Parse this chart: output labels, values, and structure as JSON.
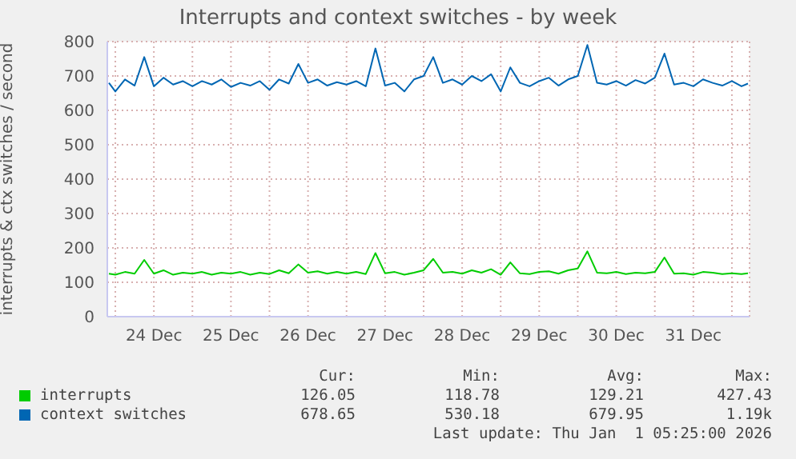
{
  "chart_data": {
    "type": "line",
    "title": "Interrupts and context switches - by week",
    "ylabel": "interrupts & ctx switches / second",
    "x": [
      "2025-12-23T22:00",
      "2025-12-24T00:00",
      "2025-12-24T03:00",
      "2025-12-24T06:00",
      "2025-12-24T09:00",
      "2025-12-24T12:00",
      "2025-12-24T15:00",
      "2025-12-24T18:00",
      "2025-12-24T21:00",
      "2025-12-25T00:00",
      "2025-12-25T03:00",
      "2025-12-25T06:00",
      "2025-12-25T09:00",
      "2025-12-25T12:00",
      "2025-12-25T15:00",
      "2025-12-25T18:00",
      "2025-12-25T21:00",
      "2025-12-26T00:00",
      "2025-12-26T03:00",
      "2025-12-26T06:00",
      "2025-12-26T09:00",
      "2025-12-26T12:00",
      "2025-12-26T15:00",
      "2025-12-26T18:00",
      "2025-12-26T21:00",
      "2025-12-27T00:00",
      "2025-12-27T03:00",
      "2025-12-27T06:00",
      "2025-12-27T09:00",
      "2025-12-27T12:00",
      "2025-12-27T15:00",
      "2025-12-27T18:00",
      "2025-12-27T21:00",
      "2025-12-28T00:00",
      "2025-12-28T03:00",
      "2025-12-28T06:00",
      "2025-12-28T09:00",
      "2025-12-28T12:00",
      "2025-12-28T15:00",
      "2025-12-28T18:00",
      "2025-12-28T21:00",
      "2025-12-29T00:00",
      "2025-12-29T03:00",
      "2025-12-29T06:00",
      "2025-12-29T09:00",
      "2025-12-29T12:00",
      "2025-12-29T15:00",
      "2025-12-29T18:00",
      "2025-12-29T21:00",
      "2025-12-30T00:00",
      "2025-12-30T03:00",
      "2025-12-30T06:00",
      "2025-12-30T09:00",
      "2025-12-30T12:00",
      "2025-12-30T15:00",
      "2025-12-30T18:00",
      "2025-12-30T21:00",
      "2025-12-31T00:00",
      "2025-12-31T03:00",
      "2025-12-31T06:00",
      "2025-12-31T09:00",
      "2025-12-31T12:00",
      "2025-12-31T15:00",
      "2025-12-31T18:00",
      "2025-12-31T21:00",
      "2026-01-01T00:00",
      "2026-01-01T03:00",
      "2026-01-01T05:00"
    ],
    "series": [
      {
        "name": "interrupts",
        "color": "#00cc00",
        "values": [
          125,
          122,
          130,
          125,
          165,
          125,
          135,
          122,
          128,
          125,
          130,
          122,
          128,
          125,
          130,
          122,
          128,
          124,
          135,
          126,
          152,
          128,
          132,
          125,
          130,
          125,
          130,
          124,
          185,
          126,
          130,
          122,
          128,
          135,
          168,
          128,
          130,
          125,
          135,
          128,
          138,
          122,
          158,
          126,
          124,
          130,
          132,
          125,
          135,
          140,
          190,
          128,
          126,
          130,
          124,
          128,
          126,
          130,
          172,
          125,
          126,
          122,
          130,
          128,
          124,
          126,
          124,
          126
        ]
      },
      {
        "name": "context switches",
        "color": "#0066b3",
        "values": [
          680,
          655,
          690,
          672,
          755,
          670,
          695,
          675,
          685,
          670,
          685,
          675,
          690,
          668,
          680,
          672,
          685,
          660,
          690,
          678,
          735,
          680,
          690,
          672,
          682,
          675,
          685,
          670,
          780,
          672,
          680,
          655,
          690,
          700,
          755,
          680,
          690,
          675,
          700,
          685,
          705,
          655,
          725,
          680,
          670,
          685,
          695,
          672,
          690,
          700,
          790,
          680,
          675,
          685,
          672,
          688,
          678,
          695,
          765,
          675,
          680,
          670,
          690,
          680,
          672,
          685,
          670,
          678
        ]
      }
    ],
    "xlim": [
      "2025-12-23T21:30",
      "2026-01-01T05:30"
    ],
    "xticks": [
      {
        "value": "2025-12-24T00:00",
        "label": null
      },
      {
        "value": "2025-12-24T12:00",
        "label": "24 Dec"
      },
      {
        "value": "2025-12-25T00:00",
        "label": null
      },
      {
        "value": "2025-12-25T12:00",
        "label": "25 Dec"
      },
      {
        "value": "2025-12-26T00:00",
        "label": null
      },
      {
        "value": "2025-12-26T12:00",
        "label": "26 Dec"
      },
      {
        "value": "2025-12-27T00:00",
        "label": null
      },
      {
        "value": "2025-12-27T12:00",
        "label": "27 Dec"
      },
      {
        "value": "2025-12-28T00:00",
        "label": null
      },
      {
        "value": "2025-12-28T12:00",
        "label": "28 Dec"
      },
      {
        "value": "2025-12-29T00:00",
        "label": null
      },
      {
        "value": "2025-12-29T12:00",
        "label": "29 Dec"
      },
      {
        "value": "2025-12-30T00:00",
        "label": null
      },
      {
        "value": "2025-12-30T12:00",
        "label": "30 Dec"
      },
      {
        "value": "2025-12-31T00:00",
        "label": null
      },
      {
        "value": "2025-12-31T12:00",
        "label": "31 Dec"
      },
      {
        "value": "2026-01-01T00:00",
        "label": null
      }
    ],
    "ylim": [
      0,
      800
    ],
    "yticks": [
      0,
      100,
      200,
      300,
      400,
      500,
      600,
      700,
      800
    ],
    "grid": true,
    "legend": "bottom",
    "marker": "none",
    "line_style": "solid",
    "annotations": [
      "Cur:",
      "Min:",
      "Avg:",
      "Max:",
      "126.05",
      "118.78",
      "129.21",
      "427.43",
      "678.65",
      "530.18",
      "679.95",
      "1.19k",
      "Last update: Thu Jan  1 05:25:00 2026"
    ]
  }
}
